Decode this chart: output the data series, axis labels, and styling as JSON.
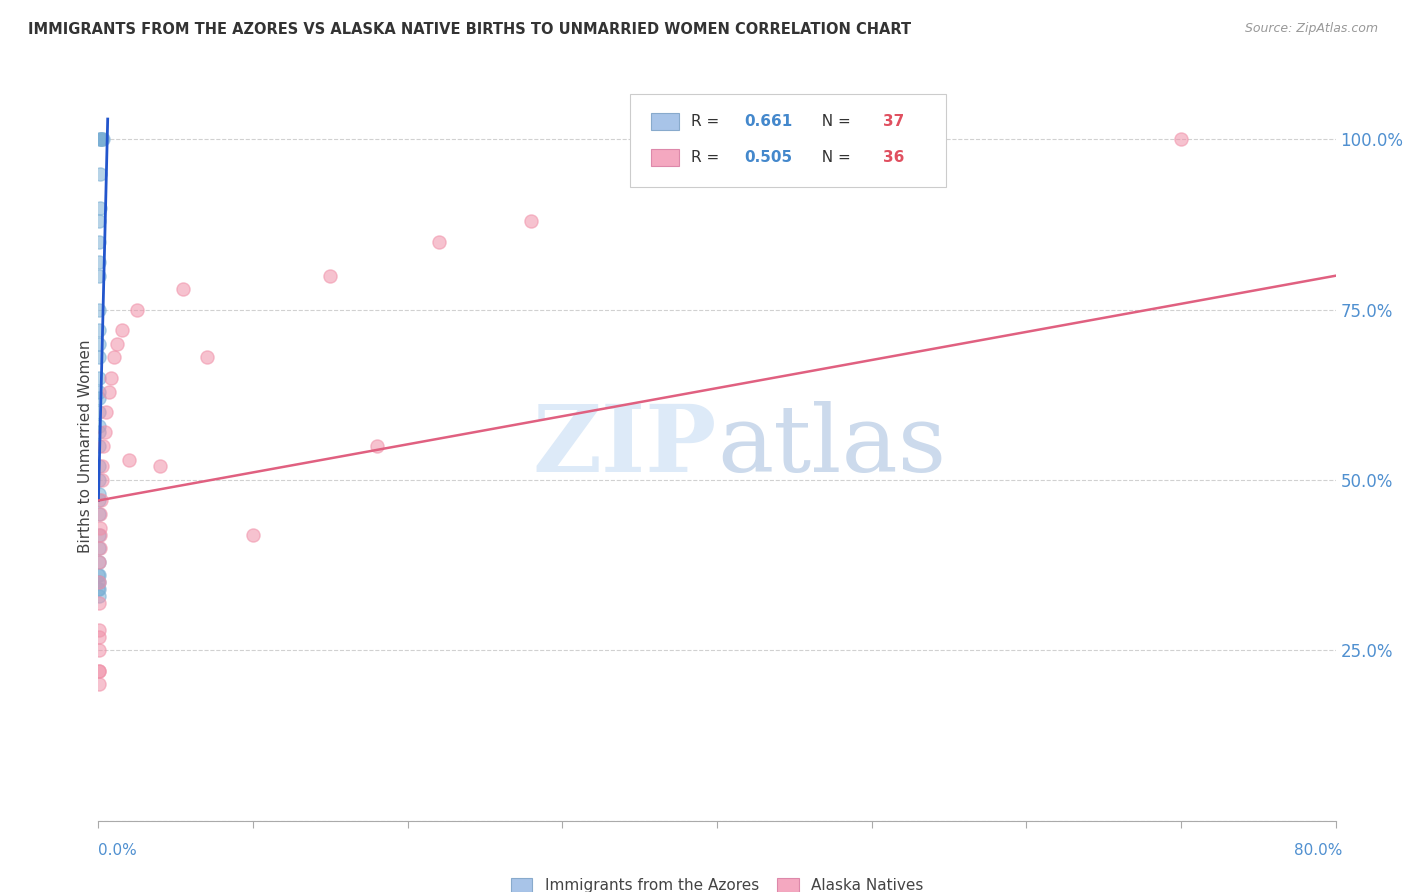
{
  "title": "IMMIGRANTS FROM THE AZORES VS ALASKA NATIVE BIRTHS TO UNMARRIED WOMEN CORRELATION CHART",
  "source": "Source: ZipAtlas.com",
  "ylabel": "Births to Unmarried Women",
  "yticks": [
    0.0,
    0.25,
    0.5,
    0.75,
    1.0
  ],
  "ytick_labels": [
    "",
    "25.0%",
    "50.0%",
    "75.0%",
    "100.0%"
  ],
  "legend_color1": "#a8c4e8",
  "legend_color2": "#f4a8c0",
  "scatter_color1": "#7aafd4",
  "scatter_color2": "#f090a8",
  "line_color1": "#2255cc",
  "line_color2": "#e06080",
  "blue_x": [
    5e-05,
    5e-05,
    5e-05,
    8e-05,
    0.0001,
    0.0001,
    0.00012,
    0.00013,
    0.00014,
    0.00015,
    0.00015,
    0.00018,
    0.00018,
    0.0002,
    0.0002,
    0.00022,
    0.00022,
    0.00025,
    0.00025,
    0.00028,
    0.0003,
    0.0003,
    0.00035,
    0.00035,
    0.0004,
    0.0004,
    0.00045,
    0.0005,
    0.0005,
    0.0006,
    0.0007,
    0.0008,
    0.001,
    0.0012,
    0.0015,
    0.002,
    0.003
  ],
  "blue_y": [
    0.35,
    0.36,
    0.34,
    0.33,
    0.35,
    0.34,
    0.36,
    0.38,
    0.4,
    0.42,
    0.45,
    0.47,
    0.5,
    0.48,
    0.52,
    0.55,
    0.57,
    0.6,
    0.58,
    0.62,
    0.65,
    0.63,
    0.68,
    0.7,
    0.72,
    0.75,
    0.8,
    0.82,
    0.85,
    0.88,
    0.9,
    0.95,
    1.0,
    1.0,
    1.0,
    1.0,
    1.0
  ],
  "pink_x": [
    0.00015,
    0.0002,
    0.00025,
    0.0003,
    0.00035,
    0.0004,
    0.00045,
    0.0005,
    0.0006,
    0.0007,
    0.0008,
    0.001,
    0.0012,
    0.0015,
    0.002,
    0.0025,
    0.003,
    0.004,
    0.005,
    0.007,
    0.008,
    0.01,
    0.012,
    0.015,
    0.02,
    0.025,
    0.04,
    0.055,
    0.07,
    0.1,
    0.15,
    0.18,
    0.22,
    0.28,
    0.4,
    0.7
  ],
  "pink_y": [
    0.2,
    0.22,
    0.22,
    0.25,
    0.27,
    0.28,
    0.32,
    0.35,
    0.38,
    0.4,
    0.42,
    0.43,
    0.45,
    0.47,
    0.5,
    0.52,
    0.55,
    0.57,
    0.6,
    0.63,
    0.65,
    0.68,
    0.7,
    0.72,
    0.53,
    0.75,
    0.52,
    0.78,
    0.68,
    0.42,
    0.8,
    0.55,
    0.85,
    0.88,
    0.95,
    1.0
  ],
  "blue_line": [
    [
      0.0,
      0.006
    ],
    [
      0.47,
      1.03
    ]
  ],
  "pink_line": [
    [
      0.0,
      0.8
    ],
    [
      0.47,
      0.8
    ]
  ],
  "watermark_zip": "ZIP",
  "watermark_atlas": "atlas"
}
